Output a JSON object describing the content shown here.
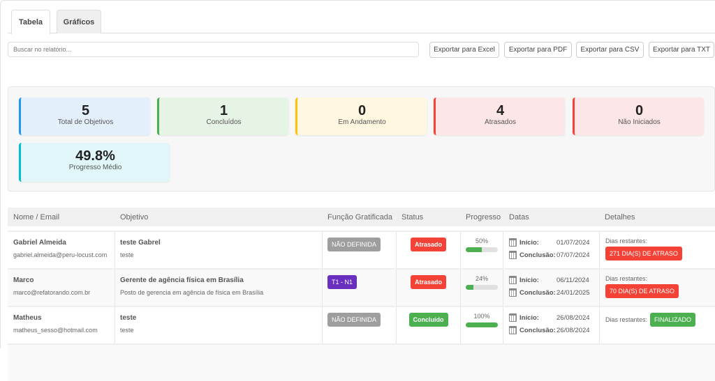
{
  "tabs": [
    "Tabela",
    "Gráficos"
  ],
  "search": {
    "placeholder": "Buscar no relatório..."
  },
  "export": [
    "Exportar para Excel",
    "Exportar para PDF",
    "Exportar para CSV",
    "Exportar para TXT"
  ],
  "stats": [
    {
      "value": "5",
      "label": "Total de Objetivos",
      "bg": "#e3f0fb",
      "border": "#2196f3"
    },
    {
      "value": "1",
      "label": "Concluídos",
      "bg": "#e6f4e6",
      "border": "#4caf50"
    },
    {
      "value": "0",
      "label": "Em Andamento",
      "bg": "#fff7e0",
      "border": "#ffc107"
    },
    {
      "value": "4",
      "label": "Atrasados",
      "bg": "#fde6e8",
      "border": "#f44336"
    },
    {
      "value": "0",
      "label": "Não Iniciados",
      "bg": "#fde6e8",
      "border": "#f44336"
    },
    {
      "value": "49.8%",
      "label": "Progresso Médio",
      "bg": "#e0f6f8",
      "border": "#00bcd4"
    }
  ],
  "columns": [
    "Nome / Email",
    "Objetivo",
    "Função Gratificada",
    "Status",
    "Progresso",
    "Datas",
    "Detalhes"
  ],
  "labels": {
    "inicio": "Início:",
    "conclusao": "Conclusão:",
    "dias": "Dias restantes:"
  },
  "rows": [
    {
      "name": "Gabriel Almeida",
      "email": "gabriel.almeida@peru-locust.com",
      "objective": "teste Gabrel",
      "description": "teste",
      "funcao": "NÃO DEFINIDA",
      "funcao_color": "#9e9e9e",
      "status": "Atrasado",
      "status_color": "#f44336",
      "progress": "50%",
      "progress_value": 50,
      "inicio": "01/07/2024",
      "conclusao": "07/07/2024",
      "detail": "271 DIA(S) DE ATRASO",
      "detail_color": "#f44336"
    },
    {
      "name": "Marco",
      "email": "marco@refatorando.com.br",
      "objective": "Gerente de agência física em Brasília",
      "description": "Posto de gerencia em agência de física em Brasília",
      "funcao": "T1 - N1",
      "funcao_color": "#6a2fbf",
      "status": "Atrasado",
      "status_color": "#f44336",
      "progress": "24%",
      "progress_value": 24,
      "inicio": "06/11/2024",
      "conclusao": "24/01/2025",
      "detail": "70 DIA(S) DE ATRASO",
      "detail_color": "#f44336"
    },
    {
      "name": "Matheus",
      "email": "matheus_sesso@hotmail.com",
      "objective": "teste",
      "description": "teste",
      "funcao": "NÃO DEFINIDA",
      "funcao_color": "#9e9e9e",
      "status": "Concluído",
      "status_color": "#4caf50",
      "progress": "100%",
      "progress_value": 100,
      "inicio": "26/08/2024",
      "conclusao": "26/08/2024",
      "detail": "FINALIZADO",
      "detail_color": "#4caf50"
    }
  ]
}
